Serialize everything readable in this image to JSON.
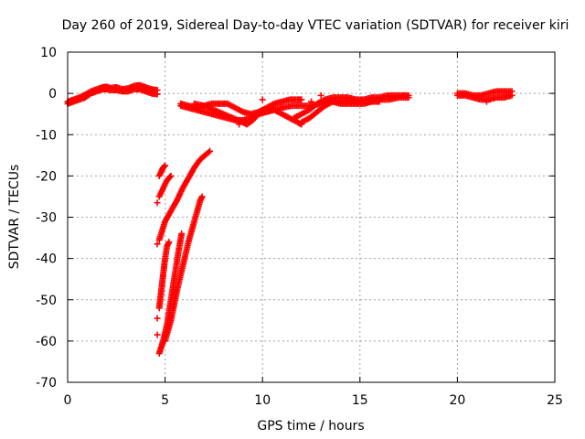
{
  "chart_data": {
    "type": "scatter",
    "title": "Day 260 of 2019, Sidereal Day-to-day VTEC variation (SDTVAR) for receiver kiri",
    "xlabel": "GPS time / hours",
    "ylabel": "SDTVAR / TECUs",
    "xlim": [
      0,
      25
    ],
    "ylim": [
      -70,
      10
    ],
    "xticks": [
      0,
      5,
      10,
      15,
      20,
      25
    ],
    "yticks": [
      10,
      0,
      -10,
      -20,
      -30,
      -40,
      -50,
      -60,
      -70
    ],
    "grid": true,
    "marker": "plus",
    "color": "#ff0000",
    "series": [
      {
        "segments": [
          [
            [
              0.0,
              -2.0
            ],
            [
              0.3,
              -1.5
            ],
            [
              0.6,
              -1.0
            ],
            [
              0.9,
              -0.3
            ],
            [
              1.2,
              0.5
            ],
            [
              1.5,
              1.0
            ],
            [
              1.8,
              1.5
            ],
            [
              2.0,
              1.6
            ],
            [
              2.2,
              1.3
            ],
            [
              2.5,
              1.5
            ],
            [
              2.8,
              1.0
            ],
            [
              3.1,
              1.2
            ],
            [
              3.4,
              1.8
            ],
            [
              3.7,
              2.0
            ],
            [
              4.0,
              1.5
            ],
            [
              4.3,
              1.0
            ],
            [
              4.6,
              0.8
            ]
          ],
          [
            [
              0.0,
              -2.5
            ],
            [
              0.3,
              -2.0
            ],
            [
              0.6,
              -1.5
            ],
            [
              0.9,
              -1.0
            ],
            [
              1.2,
              0.0
            ],
            [
              1.5,
              0.5
            ],
            [
              1.8,
              1.0
            ],
            [
              2.0,
              1.0
            ],
            [
              2.2,
              0.8
            ],
            [
              2.5,
              0.8
            ],
            [
              2.8,
              0.5
            ],
            [
              3.1,
              0.5
            ],
            [
              3.4,
              1.0
            ],
            [
              3.7,
              1.0
            ],
            [
              4.0,
              0.5
            ],
            [
              4.3,
              0.0
            ],
            [
              4.6,
              -0.2
            ]
          ],
          [
            [
              4.7,
              -20.0
            ],
            [
              4.8,
              -19.0
            ],
            [
              4.9,
              -18.0
            ],
            [
              5.0,
              -17.5
            ]
          ],
          [
            [
              4.7,
              -25.0
            ],
            [
              4.9,
              -23.0
            ],
            [
              5.1,
              -21.0
            ],
            [
              5.3,
              -20.0
            ]
          ],
          [
            [
              4.7,
              -35.5
            ],
            [
              5.0,
              -31.0
            ],
            [
              5.3,
              -28.5
            ],
            [
              5.6,
              -26.0
            ],
            [
              5.9,
              -23.0
            ],
            [
              6.2,
              -20.5
            ],
            [
              6.5,
              -18.0
            ],
            [
              6.8,
              -16.0
            ],
            [
              7.1,
              -14.8
            ],
            [
              7.3,
              -14.0
            ]
          ],
          [
            [
              4.7,
              -52.0
            ],
            [
              4.8,
              -48.0
            ],
            [
              4.9,
              -44.0
            ],
            [
              5.0,
              -40.0
            ],
            [
              5.1,
              -37.0
            ],
            [
              5.2,
              -36.0
            ]
          ],
          [
            [
              4.7,
              -63.0
            ],
            [
              4.9,
              -60.0
            ],
            [
              5.1,
              -56.0
            ],
            [
              5.3,
              -50.0
            ],
            [
              5.5,
              -44.0
            ],
            [
              5.7,
              -38.0
            ],
            [
              5.85,
              -34.0
            ]
          ],
          [
            [
              5.0,
              -60.0
            ],
            [
              5.3,
              -55.0
            ],
            [
              5.6,
              -48.0
            ],
            [
              5.9,
              -42.0
            ],
            [
              6.2,
              -36.0
            ],
            [
              6.5,
              -31.0
            ],
            [
              6.8,
              -26.0
            ],
            [
              6.9,
              -25.0
            ]
          ],
          [
            [
              5.8,
              -2.5
            ],
            [
              6.2,
              -3.0
            ],
            [
              6.6,
              -3.5
            ],
            [
              7.0,
              -3.0
            ],
            [
              7.4,
              -2.5
            ],
            [
              7.8,
              -2.5
            ],
            [
              8.2,
              -2.5
            ],
            [
              8.6,
              -3.5
            ],
            [
              9.0,
              -4.5
            ],
            [
              9.4,
              -5.0
            ],
            [
              9.8,
              -4.5
            ],
            [
              10.2,
              -3.5
            ],
            [
              10.6,
              -2.5
            ],
            [
              11.0,
              -2.0
            ],
            [
              11.4,
              -1.5
            ],
            [
              11.8,
              -1.5
            ],
            [
              12.0,
              -1.5
            ]
          ],
          [
            [
              5.8,
              -3.0
            ],
            [
              6.2,
              -3.5
            ],
            [
              6.6,
              -4.0
            ],
            [
              7.0,
              -4.5
            ],
            [
              7.4,
              -5.0
            ],
            [
              7.8,
              -5.5
            ],
            [
              8.2,
              -6.0
            ],
            [
              8.6,
              -6.5
            ],
            [
              9.0,
              -6.5
            ],
            [
              9.4,
              -6.0
            ],
            [
              9.8,
              -5.0
            ],
            [
              10.2,
              -4.5
            ],
            [
              10.6,
              -4.0
            ],
            [
              11.0,
              -5.0
            ],
            [
              11.4,
              -6.0
            ],
            [
              11.8,
              -7.0
            ],
            [
              12.0,
              -7.5
            ]
          ],
          [
            [
              6.5,
              -2.5
            ],
            [
              7.0,
              -3.0
            ],
            [
              7.5,
              -4.0
            ],
            [
              8.0,
              -5.0
            ],
            [
              8.5,
              -6.0
            ],
            [
              9.0,
              -7.0
            ],
            [
              9.2,
              -7.5
            ],
            [
              9.5,
              -6.5
            ],
            [
              9.8,
              -5.0
            ],
            [
              10.0,
              -4.0
            ]
          ],
          [
            [
              9.5,
              -5.5
            ],
            [
              10.0,
              -4.5
            ],
            [
              10.5,
              -4.0
            ],
            [
              11.0,
              -3.5
            ],
            [
              11.5,
              -3.0
            ],
            [
              12.0,
              -3.0
            ],
            [
              12.5,
              -3.0
            ],
            [
              13.0,
              -2.5
            ],
            [
              13.5,
              -2.0
            ],
            [
              14.0,
              -2.0
            ],
            [
              14.5,
              -2.0
            ],
            [
              15.0,
              -2.0
            ],
            [
              15.5,
              -2.0
            ],
            [
              16.0,
              -1.5
            ],
            [
              16.5,
              -1.5
            ],
            [
              17.0,
              -1.0
            ],
            [
              17.5,
              -1.0
            ]
          ],
          [
            [
              11.6,
              -6.0
            ],
            [
              12.0,
              -5.0
            ],
            [
              12.4,
              -4.0
            ],
            [
              12.8,
              -2.5
            ],
            [
              13.2,
              -1.5
            ],
            [
              13.6,
              -1.0
            ],
            [
              14.0,
              -1.0
            ],
            [
              14.4,
              -1.0
            ],
            [
              14.8,
              -1.5
            ],
            [
              15.2,
              -1.5
            ],
            [
              15.6,
              -1.0
            ],
            [
              16.0,
              -1.0
            ],
            [
              16.4,
              -0.5
            ],
            [
              16.8,
              -0.5
            ],
            [
              17.2,
              -0.5
            ],
            [
              17.5,
              -0.5
            ]
          ],
          [
            [
              12.0,
              -7.0
            ],
            [
              12.4,
              -6.0
            ],
            [
              12.8,
              -4.5
            ],
            [
              13.2,
              -3.0
            ],
            [
              13.6,
              -2.0
            ],
            [
              14.0,
              -2.5
            ],
            [
              14.4,
              -2.5
            ],
            [
              14.8,
              -2.5
            ],
            [
              15.2,
              -2.5
            ],
            [
              15.6,
              -2.0
            ],
            [
              16.0,
              -2.0
            ]
          ],
          [
            [
              20.0,
              -0.5
            ],
            [
              20.4,
              -0.5
            ],
            [
              20.8,
              -1.0
            ],
            [
              21.2,
              -1.5
            ],
            [
              21.6,
              -1.5
            ],
            [
              22.0,
              -1.0
            ],
            [
              22.4,
              -1.0
            ],
            [
              22.8,
              -0.5
            ]
          ],
          [
            [
              20.0,
              0.0
            ],
            [
              20.4,
              0.0
            ],
            [
              20.8,
              -0.5
            ],
            [
              21.2,
              -0.5
            ],
            [
              21.6,
              0.0
            ],
            [
              22.0,
              0.5
            ],
            [
              22.4,
              0.5
            ],
            [
              22.8,
              0.5
            ]
          ]
        ],
        "points": [
          [
            4.6,
            -26.5
          ],
          [
            4.6,
            -36.5
          ],
          [
            4.6,
            -54.5
          ],
          [
            4.6,
            -58.5
          ],
          [
            10.0,
            -1.5
          ],
          [
            13.0,
            -0.5
          ],
          [
            16.5,
            -1.0
          ],
          [
            8.8,
            -7.5
          ],
          [
            12.5,
            -2.0
          ],
          [
            21.5,
            -2.0
          ],
          [
            22.5,
            -0.5
          ]
        ]
      }
    ]
  }
}
